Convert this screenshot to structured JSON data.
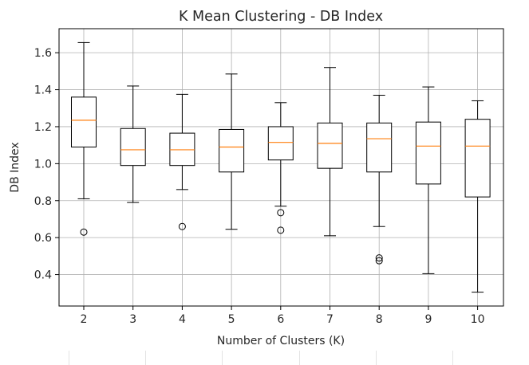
{
  "chart_data": {
    "type": "box",
    "title": "K Mean Clustering - DB Index",
    "xlabel": "Number of Clusters (K)",
    "ylabel": "DB Index",
    "categories": [
      "2",
      "3",
      "4",
      "5",
      "6",
      "7",
      "8",
      "9",
      "10"
    ],
    "ylim": [
      0.23,
      1.73
    ],
    "yticks": [
      "0.4",
      "0.6",
      "0.8",
      "1.0",
      "1.2",
      "1.4",
      "1.6"
    ],
    "grid": true,
    "colors": {
      "box": "#000000",
      "median": "#ff7f0e",
      "grid": "#b0b0b0",
      "flier": "#000000"
    },
    "boxes": [
      {
        "k": "2",
        "whisker_low": 0.81,
        "q1": 1.09,
        "median": 1.235,
        "q3": 1.36,
        "whisker_high": 1.655,
        "fliers": [
          0.63
        ]
      },
      {
        "k": "3",
        "whisker_low": 0.79,
        "q1": 0.99,
        "median": 1.075,
        "q3": 1.19,
        "whisker_high": 1.42,
        "fliers": []
      },
      {
        "k": "4",
        "whisker_low": 0.86,
        "q1": 0.99,
        "median": 1.075,
        "q3": 1.165,
        "whisker_high": 1.375,
        "fliers": [
          0.66
        ]
      },
      {
        "k": "5",
        "whisker_low": 0.645,
        "q1": 0.955,
        "median": 1.09,
        "q3": 1.185,
        "whisker_high": 1.485,
        "fliers": []
      },
      {
        "k": "6",
        "whisker_low": 0.77,
        "q1": 1.02,
        "median": 1.115,
        "q3": 1.2,
        "whisker_high": 1.33,
        "fliers": [
          0.735,
          0.64
        ]
      },
      {
        "k": "7",
        "whisker_low": 0.61,
        "q1": 0.975,
        "median": 1.11,
        "q3": 1.22,
        "whisker_high": 1.52,
        "fliers": []
      },
      {
        "k": "8",
        "whisker_low": 0.66,
        "q1": 0.955,
        "median": 1.135,
        "q3": 1.22,
        "whisker_high": 1.37,
        "fliers": [
          0.49,
          0.475
        ]
      },
      {
        "k": "9",
        "whisker_low": 0.405,
        "q1": 0.89,
        "median": 1.095,
        "q3": 1.225,
        "whisker_high": 1.415,
        "fliers": []
      },
      {
        "k": "10",
        "whisker_low": 0.305,
        "q1": 0.82,
        "median": 1.095,
        "q3": 1.24,
        "whisker_high": 1.34,
        "fliers": []
      }
    ]
  }
}
